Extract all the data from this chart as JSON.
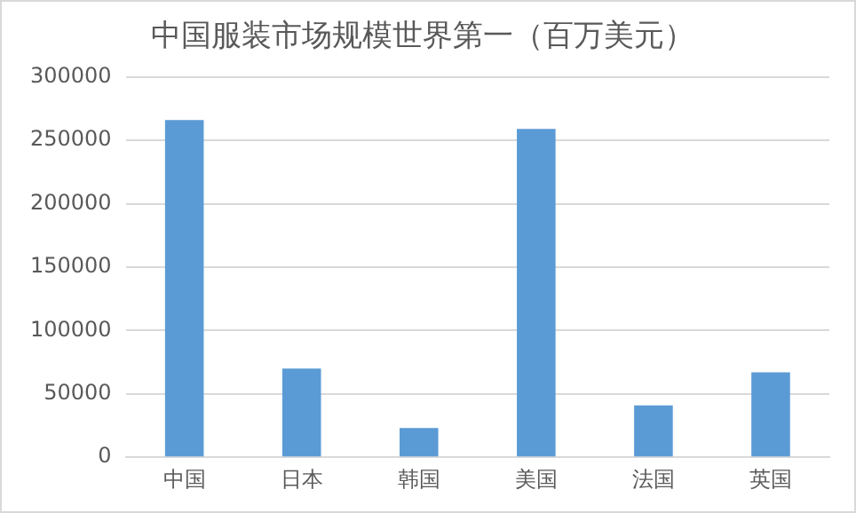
{
  "chart_data": {
    "type": "bar",
    "title": "中国服装市场规模世界第一（百万美元）",
    "categories": [
      "中国",
      "日本",
      "韩国",
      "美国",
      "法国",
      "英国"
    ],
    "values": [
      266000,
      70000,
      23000,
      259000,
      41000,
      67000
    ],
    "color": "#5b9bd5",
    "ylim": [
      0,
      300000
    ],
    "yticks": [
      0,
      50000,
      100000,
      150000,
      200000,
      250000,
      300000
    ],
    "grid": "y",
    "legend": false
  }
}
